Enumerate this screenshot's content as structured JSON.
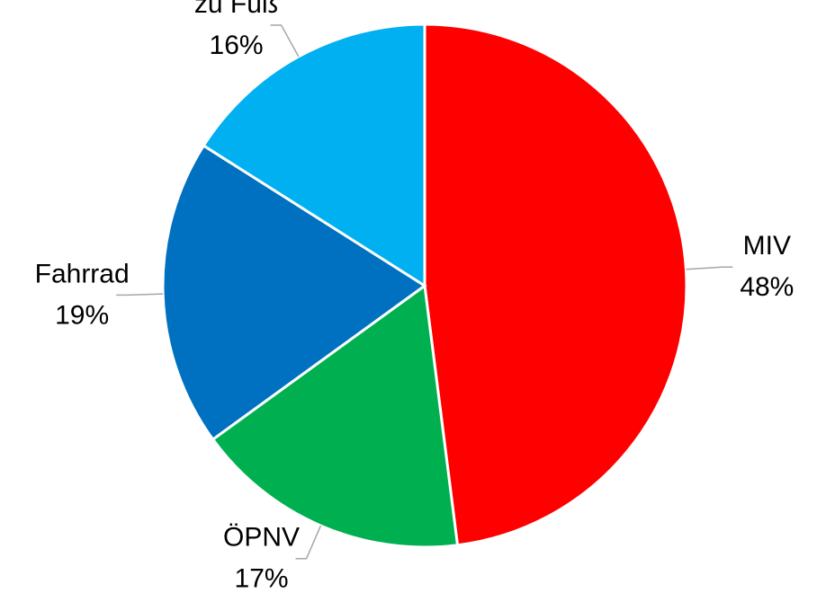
{
  "chart_data": {
    "type": "pie",
    "categories": [
      "MIV",
      "ÖPNV",
      "Fahrrad",
      "zu Fuß"
    ],
    "values": [
      48,
      17,
      19,
      16
    ],
    "value_labels": [
      "48%",
      "17%",
      "19%",
      "16%"
    ],
    "colors": [
      "#ff0000",
      "#00b050",
      "#0070c0",
      "#00b0f0"
    ]
  }
}
